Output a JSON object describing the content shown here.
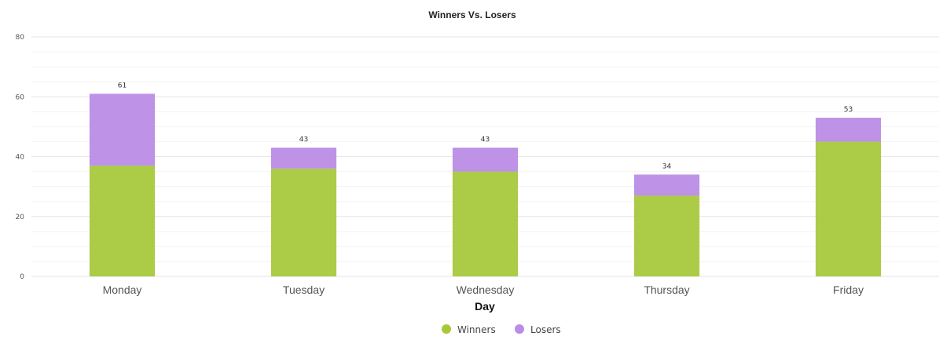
{
  "chart_data": {
    "type": "bar",
    "stacked": true,
    "title": "Winners Vs. Losers",
    "xlabel": "Day",
    "ylabel": "",
    "ylim": [
      0,
      80
    ],
    "yticks": [
      0,
      20,
      40,
      60,
      80
    ],
    "grid": true,
    "legend_position": "bottom",
    "categories": [
      "Monday",
      "Tuesday",
      "Wednesday",
      "Thursday",
      "Friday"
    ],
    "series": [
      {
        "name": "Winners",
        "color": "#a8c83c",
        "values": [
          37,
          36,
          35,
          27,
          45
        ]
      },
      {
        "name": "Losers",
        "color": "#b98ce6",
        "values": [
          24,
          7,
          8,
          7,
          8
        ]
      }
    ],
    "totals": [
      61,
      43,
      43,
      34,
      53
    ]
  }
}
